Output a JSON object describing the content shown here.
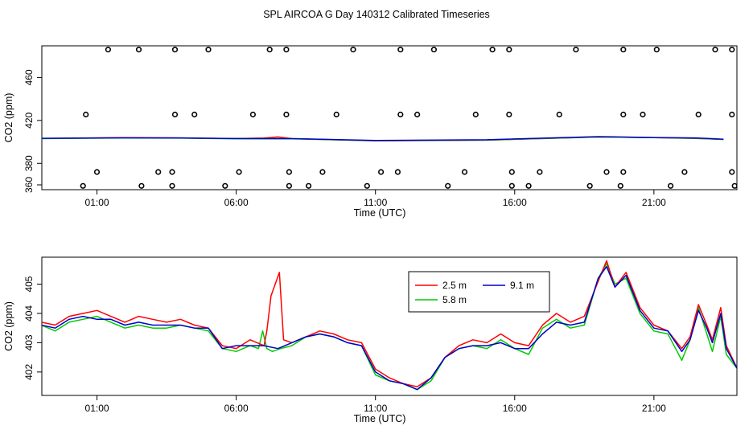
{
  "title": "SPL AIRCOA G  Day 140312  Calibrated Timeseries",
  "colors": {
    "s25": "#ff0000",
    "s58": "#00cc00",
    "s91": "#0000cc",
    "axis": "#000000",
    "markers": "#000000"
  },
  "chart_data": [
    {
      "type": "scatter",
      "title": "",
      "xlabel": "Time (UTC)",
      "ylabel": "CO2 (ppm)",
      "xlim": [
        -0.98,
        23.98
      ],
      "ylim": [
        355.5,
        489.5
      ],
      "x_ticks": [
        1,
        6,
        11,
        16,
        21
      ],
      "x_tick_labels": [
        "01:00",
        "06:00",
        "11:00",
        "16:00",
        "21:00"
      ],
      "y_ticks": [
        360,
        380,
        420,
        460
      ],
      "y_tick_labels": [
        "360",
        "380",
        "420",
        "460"
      ],
      "grid": false,
      "markers": {
        "style": "open-circle",
        "x": [
          1.4,
          2.5,
          3.8,
          5.0,
          7.2,
          7.8,
          10.2,
          11.9,
          13.1,
          15.2,
          15.8,
          18.2,
          19.9,
          21.1,
          23.2,
          23.8,
          0.6,
          3.8,
          4.5,
          6.6,
          7.8,
          9.6,
          11.9,
          12.5,
          14.6,
          15.8,
          17.6,
          19.9,
          20.6,
          22.6,
          23.8,
          1.0,
          3.2,
          3.7,
          6.1,
          7.9,
          9.1,
          11.2,
          11.8,
          14.2,
          15.9,
          16.9,
          19.3,
          19.9,
          22.1,
          23.8,
          0.5,
          2.6,
          3.7,
          5.6,
          7.9,
          8.6,
          10.7,
          13.6,
          15.9,
          16.5,
          18.7,
          19.8,
          21.6,
          23.9
        ],
        "y": [
          486,
          486,
          486,
          486,
          486,
          486,
          486,
          486,
          486,
          486,
          486,
          486,
          486,
          486,
          486,
          486,
          425.5,
          425.5,
          425.5,
          425.5,
          425.5,
          425.5,
          425.5,
          425.5,
          425.5,
          425.5,
          425.5,
          425.5,
          425.5,
          425.5,
          425.5,
          372,
          372,
          372,
          372,
          372,
          372,
          372,
          372,
          372,
          372,
          372,
          372,
          372,
          372,
          372,
          359,
          359,
          359,
          359,
          359,
          359,
          359,
          359,
          359,
          359,
          359,
          359,
          359,
          359
        ]
      },
      "series": [
        {
          "name": "2.5 m",
          "x": [
            -1,
            2,
            4,
            6,
            7,
            7.5,
            8,
            11,
            15,
            19,
            21,
            22.5,
            23.5
          ],
          "values": [
            403.2,
            404.0,
            403.7,
            403.0,
            403.6,
            404.6,
            403.0,
            401.0,
            401.6,
            404.5,
            404.0,
            403.2,
            402.4
          ]
        },
        {
          "name": "5.8 m",
          "x": [
            -1,
            2,
            4,
            6,
            8,
            11,
            15,
            19,
            21,
            22.5,
            23.5
          ],
          "values": [
            403.0,
            403.6,
            403.5,
            402.9,
            402.9,
            401.2,
            401.8,
            404.6,
            403.9,
            403.4,
            402.3
          ]
        },
        {
          "name": "9.1 m",
          "x": [
            -1,
            2,
            4,
            6,
            8,
            11,
            15,
            19,
            21,
            22.5,
            23.5
          ],
          "values": [
            403.3,
            403.8,
            403.7,
            403.1,
            403.0,
            401.4,
            402.0,
            404.9,
            404.1,
            403.7,
            402.5
          ]
        }
      ]
    },
    {
      "type": "line",
      "title": "",
      "xlabel": "Time (UTC)",
      "ylabel": "CO2 (ppm)",
      "xlim": [
        -0.98,
        23.98
      ],
      "ylim": [
        401.2,
        405.92
      ],
      "x_ticks": [
        1,
        6,
        11,
        16,
        21
      ],
      "x_tick_labels": [
        "01:00",
        "06:00",
        "11:00",
        "16:00",
        "21:00"
      ],
      "y_ticks": [
        402,
        403,
        404,
        405
      ],
      "y_tick_labels": [
        "402",
        "403",
        "404",
        "405"
      ],
      "grid": false,
      "legend": {
        "position": "top-right",
        "entries": [
          "2.5 m",
          "9.1 m",
          "5.8 m"
        ]
      },
      "series": [
        {
          "name": "2.5 m",
          "x": [
            -1,
            -0.5,
            0,
            0.5,
            1,
            1.5,
            2,
            2.5,
            3,
            3.5,
            4,
            4.5,
            5,
            5.5,
            6,
            6.5,
            7,
            7.1,
            7.25,
            7.4,
            7.55,
            7.7,
            8,
            8.5,
            9,
            9.5,
            10,
            10.5,
            11,
            11.5,
            12,
            12.5,
            13,
            13.5,
            14,
            14.5,
            15,
            15.5,
            16,
            16.5,
            17,
            17.5,
            18,
            18.5,
            19,
            19.3,
            19.6,
            20,
            20.5,
            21,
            21.5,
            22,
            22.3,
            22.6,
            22.9,
            23.1,
            23.4,
            23.6,
            24
          ],
          "values": [
            403.7,
            403.6,
            403.9,
            404.0,
            404.1,
            403.9,
            403.7,
            403.9,
            403.8,
            403.7,
            403.8,
            403.6,
            403.5,
            402.9,
            402.8,
            403.1,
            402.9,
            403.4,
            404.6,
            405.0,
            405.4,
            403.1,
            403.0,
            403.2,
            403.4,
            403.3,
            403.1,
            403.0,
            402.1,
            401.8,
            401.6,
            401.5,
            401.8,
            402.5,
            402.9,
            403.1,
            403.0,
            403.3,
            403.0,
            402.9,
            403.6,
            404.0,
            403.7,
            403.9,
            405.1,
            405.8,
            404.9,
            405.4,
            404.2,
            403.6,
            403.4,
            402.8,
            403.2,
            404.3,
            403.6,
            403.1,
            404.2,
            402.9,
            402.1
          ]
        },
        {
          "name": "5.8 m",
          "x": [
            -1,
            -0.5,
            0,
            0.5,
            1,
            1.5,
            2,
            2.5,
            3,
            3.5,
            4,
            4.5,
            5,
            5.5,
            6,
            6.5,
            6.8,
            6.95,
            7.1,
            7.3,
            7.6,
            8,
            8.5,
            9,
            9.5,
            10,
            10.5,
            11,
            11.5,
            12,
            12.5,
            13,
            13.5,
            14,
            14.5,
            15,
            15.5,
            16,
            16.5,
            17,
            17.5,
            18,
            18.5,
            19,
            19.3,
            19.6,
            20,
            20.5,
            21,
            21.5,
            22,
            22.3,
            22.6,
            22.9,
            23.1,
            23.4,
            23.6,
            24
          ],
          "values": [
            403.6,
            403.4,
            403.7,
            403.8,
            403.9,
            403.7,
            403.5,
            403.6,
            403.5,
            403.5,
            403.6,
            403.5,
            403.4,
            402.8,
            402.7,
            402.9,
            402.8,
            403.4,
            402.8,
            402.7,
            402.8,
            402.9,
            403.2,
            403.3,
            403.2,
            403.0,
            402.9,
            401.9,
            401.7,
            401.6,
            401.4,
            401.7,
            402.5,
            402.8,
            402.9,
            402.8,
            403.1,
            402.8,
            402.6,
            403.5,
            403.8,
            403.5,
            403.6,
            405.2,
            405.7,
            405.0,
            405.2,
            404.0,
            403.4,
            403.3,
            402.4,
            403.1,
            404.2,
            403.3,
            402.7,
            403.9,
            402.6,
            402.1
          ]
        },
        {
          "name": "9.1 m",
          "x": [
            -1,
            -0.5,
            0,
            0.5,
            1,
            1.5,
            2,
            2.5,
            3,
            3.5,
            4,
            4.5,
            5,
            5.5,
            6,
            6.5,
            7,
            7.5,
            8,
            8.5,
            9,
            9.5,
            10,
            10.5,
            11,
            11.5,
            12,
            12.5,
            13,
            13.5,
            14,
            14.5,
            15,
            15.5,
            16,
            16.5,
            17,
            17.5,
            18,
            18.5,
            19,
            19.3,
            19.6,
            20,
            20.5,
            21,
            21.5,
            22,
            22.3,
            22.6,
            22.9,
            23.1,
            23.4,
            23.6,
            24
          ],
          "values": [
            403.6,
            403.5,
            403.8,
            403.9,
            403.8,
            403.8,
            403.6,
            403.7,
            403.6,
            403.6,
            403.6,
            403.5,
            403.5,
            402.8,
            402.9,
            402.9,
            402.9,
            402.8,
            403.0,
            403.2,
            403.3,
            403.2,
            403.0,
            402.9,
            402.0,
            401.7,
            401.6,
            401.4,
            401.8,
            402.5,
            402.8,
            402.9,
            402.9,
            403.0,
            402.8,
            402.8,
            403.3,
            403.7,
            403.6,
            403.7,
            405.2,
            405.6,
            404.9,
            405.3,
            404.1,
            403.5,
            403.4,
            402.7,
            403.1,
            404.1,
            403.5,
            403.0,
            404.0,
            402.8,
            402.1
          ]
        }
      ]
    }
  ]
}
